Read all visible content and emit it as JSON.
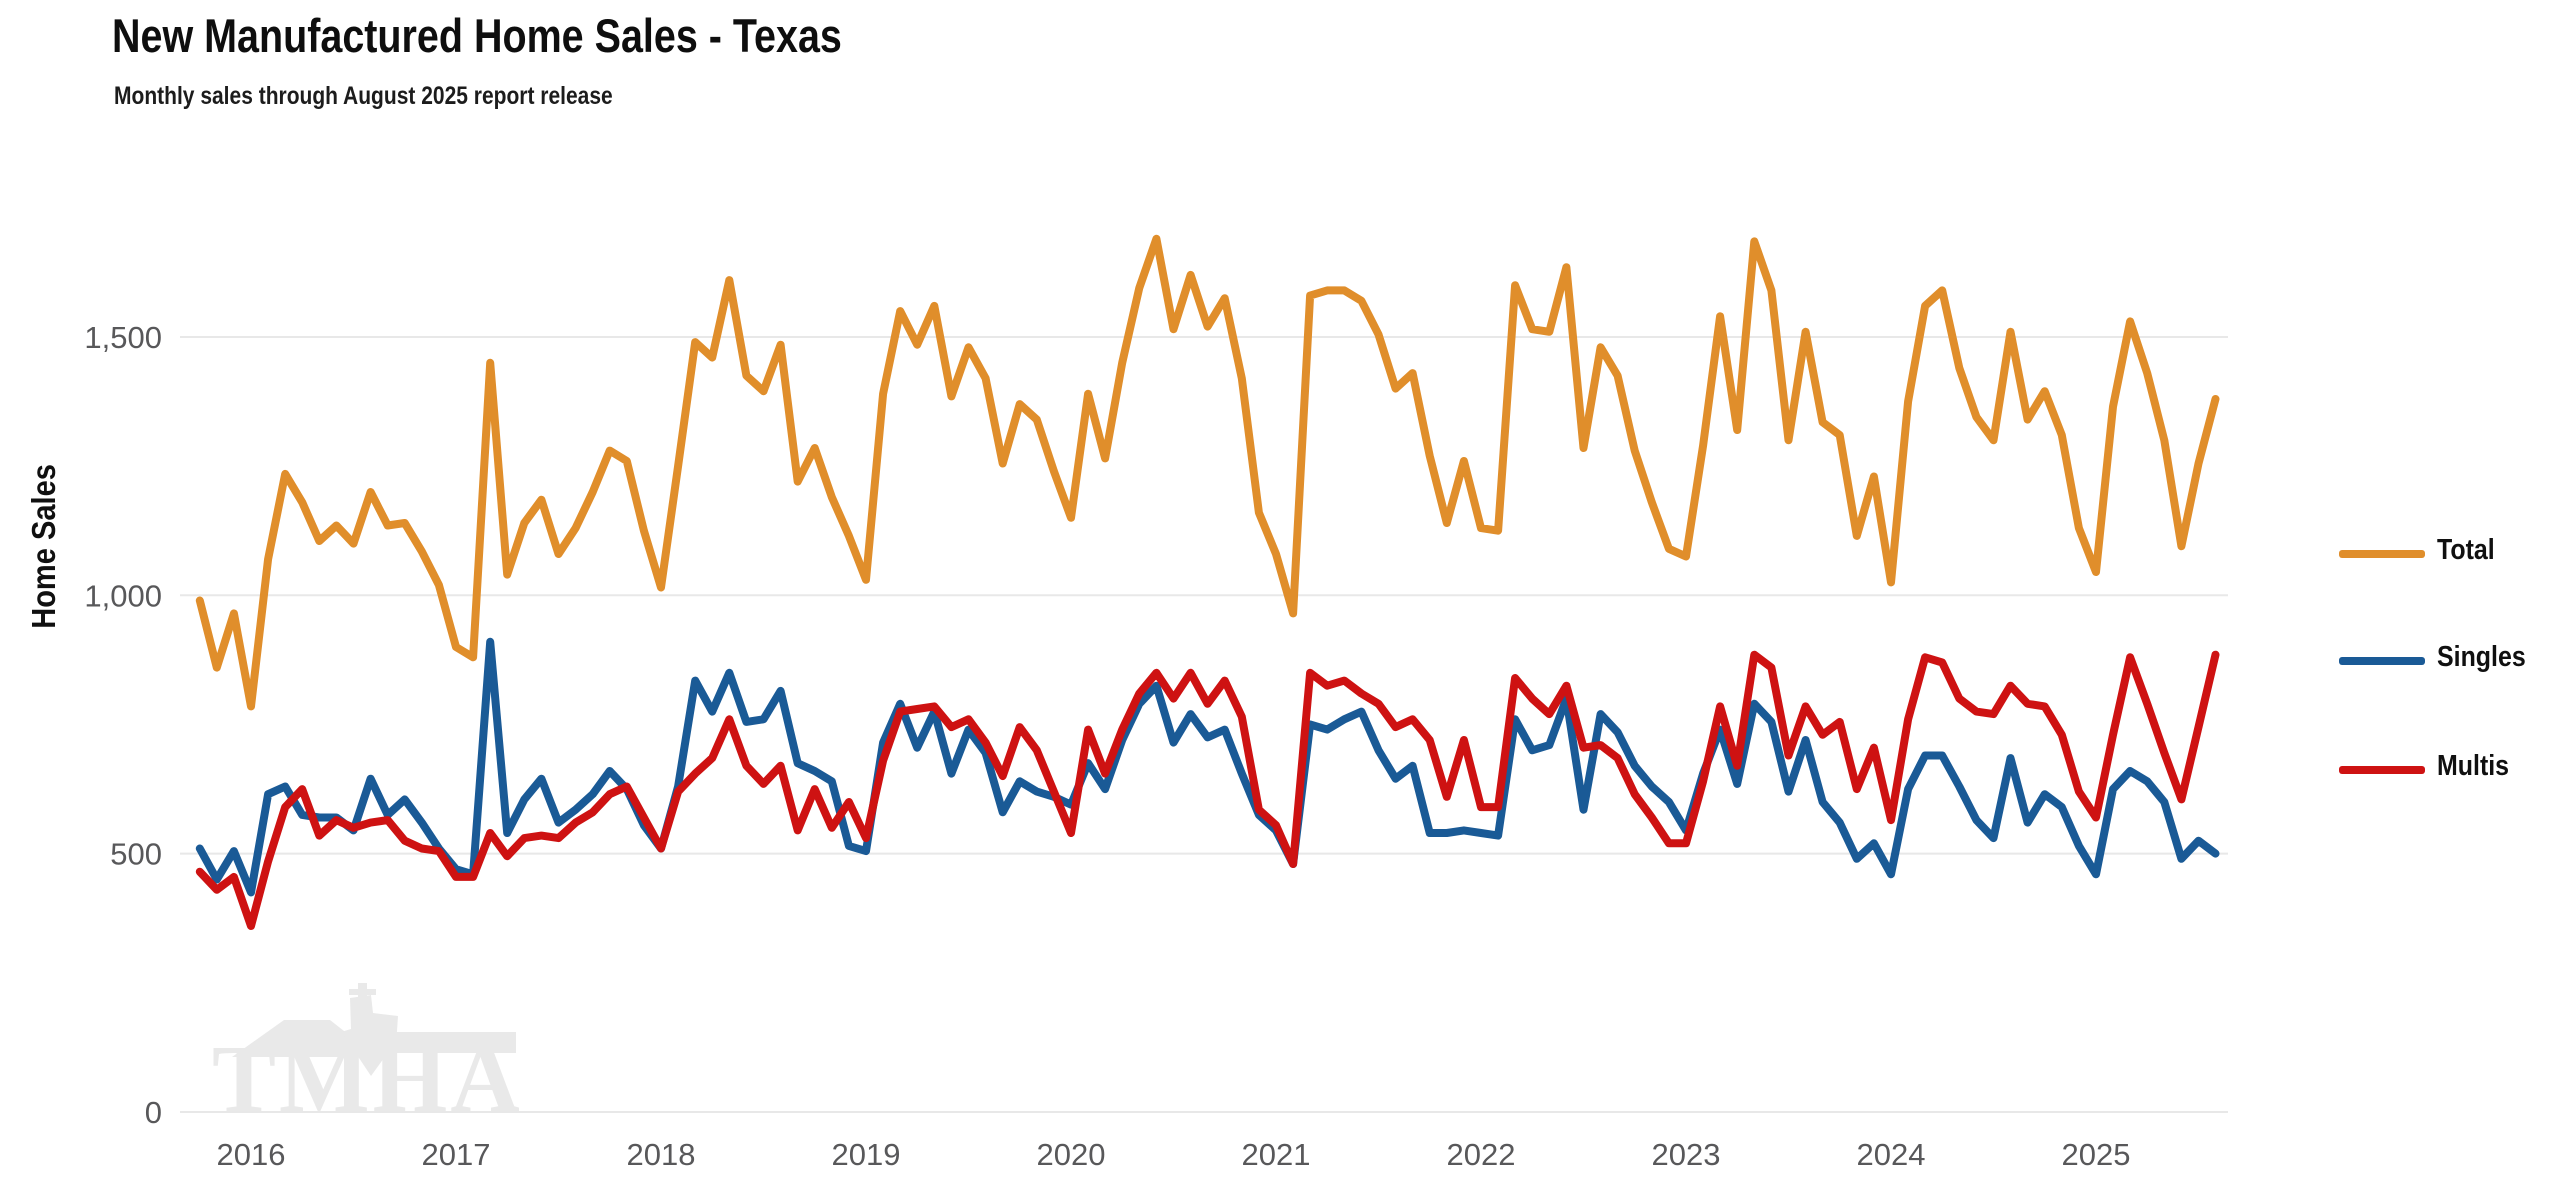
{
  "header": {
    "title": "New Manufactured Home Sales - Texas",
    "subtitle": "Monthly sales through August 2025 report release"
  },
  "y_axis": {
    "label": "Home Sales",
    "tick_labels": [
      "0",
      "500",
      "1,000",
      "1,500"
    ],
    "tick_values": [
      0,
      500,
      1000,
      1500
    ]
  },
  "x_axis": {
    "tick_labels": [
      "2016",
      "2017",
      "2018",
      "2019",
      "2020",
      "2021",
      "2022",
      "2023",
      "2024",
      "2025"
    ]
  },
  "legend": {
    "items": [
      {
        "label": "Total",
        "color": "#E08E2B"
      },
      {
        "label": "Singles",
        "color": "#1A5A96"
      },
      {
        "label": "Multis",
        "color": "#CE1212"
      }
    ]
  },
  "watermark": {
    "text": "TMHA",
    "color": "#e9e9e9"
  },
  "colors": {
    "grid": "#e8e8e8",
    "axis_text": "#58585a",
    "title_text": "#0e0e0e"
  },
  "chart_data": {
    "type": "line",
    "title": "New Manufactured Home Sales - Texas",
    "xlabel": "",
    "ylabel": "Home Sales",
    "ylim": [
      0,
      1750
    ],
    "grid": "horizontal",
    "legend_position": "right",
    "x_start_month": "2015-10",
    "x_end_month": "2025-08",
    "monthly_points": 119,
    "x_year_ticks": [
      2016,
      2017,
      2018,
      2019,
      2020,
      2021,
      2022,
      2023,
      2024,
      2025
    ],
    "series": [
      {
        "name": "Total",
        "color": "#E08E2B",
        "values": [
          990,
          860,
          965,
          785,
          1070,
          1235,
          1180,
          1105,
          1135,
          1100,
          1200,
          1135,
          1140,
          1085,
          1020,
          900,
          880,
          1450,
          1040,
          1140,
          1185,
          1080,
          1130,
          1200,
          1280,
          1260,
          1125,
          1015,
          1250,
          1490,
          1460,
          1610,
          1425,
          1395,
          1485,
          1220,
          1285,
          1190,
          1115,
          1030,
          1390,
          1550,
          1485,
          1560,
          1385,
          1480,
          1420,
          1255,
          1370,
          1340,
          1240,
          1150,
          1390,
          1265,
          1450,
          1595,
          1690,
          1515,
          1620,
          1520,
          1575,
          1420,
          1160,
          1080,
          965,
          1580,
          1590,
          1590,
          1570,
          1505,
          1400,
          1430,
          1270,
          1140,
          1260,
          1130,
          1125,
          1600,
          1515,
          1510,
          1635,
          1285,
          1480,
          1425,
          1280,
          1180,
          1090,
          1075,
          1290,
          1540,
          1320,
          1685,
          1590,
          1300,
          1510,
          1335,
          1310,
          1115,
          1230,
          1025,
          1375,
          1560,
          1590,
          1440,
          1345,
          1300,
          1510,
          1340,
          1395,
          1310,
          1130,
          1045,
          1365,
          1530,
          1430,
          1300,
          1095,
          1255,
          1380
        ]
      },
      {
        "name": "Singles",
        "color": "#1A5A96",
        "values": [
          510,
          450,
          505,
          425,
          615,
          630,
          575,
          570,
          570,
          545,
          645,
          575,
          605,
          560,
          510,
          470,
          460,
          910,
          540,
          605,
          645,
          560,
          585,
          615,
          660,
          625,
          555,
          510,
          630,
          835,
          775,
          850,
          755,
          760,
          815,
          675,
          660,
          640,
          515,
          505,
          715,
          790,
          705,
          775,
          655,
          740,
          695,
          580,
          640,
          620,
          610,
          595,
          675,
          625,
          720,
          790,
          825,
          715,
          770,
          725,
          740,
          655,
          575,
          545,
          480,
          750,
          740,
          760,
          775,
          700,
          645,
          670,
          540,
          540,
          545,
          540,
          535,
          760,
          700,
          710,
          800,
          585,
          770,
          735,
          670,
          630,
          600,
          545,
          655,
          740,
          635,
          790,
          755,
          620,
          720,
          600,
          560,
          490,
          520,
          460,
          625,
          690,
          690,
          630,
          565,
          530,
          685,
          560,
          615,
          590,
          515,
          460,
          625,
          660,
          640,
          600,
          490,
          525,
          500
        ]
      },
      {
        "name": "Multis",
        "color": "#CE1212",
        "values": [
          465,
          430,
          455,
          360,
          485,
          590,
          625,
          535,
          565,
          550,
          560,
          565,
          525,
          510,
          505,
          455,
          455,
          540,
          495,
          530,
          535,
          530,
          560,
          580,
          615,
          630,
          570,
          510,
          620,
          655,
          685,
          760,
          670,
          635,
          670,
          545,
          625,
          550,
          600,
          530,
          680,
          775,
          780,
          785,
          745,
          760,
          715,
          650,
          745,
          700,
          620,
          540,
          740,
          655,
          740,
          810,
          850,
          800,
          850,
          790,
          835,
          765,
          585,
          555,
          480,
          850,
          825,
          835,
          810,
          790,
          745,
          760,
          720,
          610,
          720,
          590,
          590,
          840,
          800,
          770,
          825,
          705,
          710,
          685,
          615,
          570,
          520,
          520,
          640,
          785,
          670,
          885,
          860,
          690,
          785,
          730,
          755,
          625,
          705,
          565,
          760,
          880,
          870,
          800,
          775,
          770,
          825,
          790,
          785,
          730,
          620,
          570,
          730,
          880,
          790,
          695,
          605,
          745,
          885
        ]
      }
    ]
  }
}
